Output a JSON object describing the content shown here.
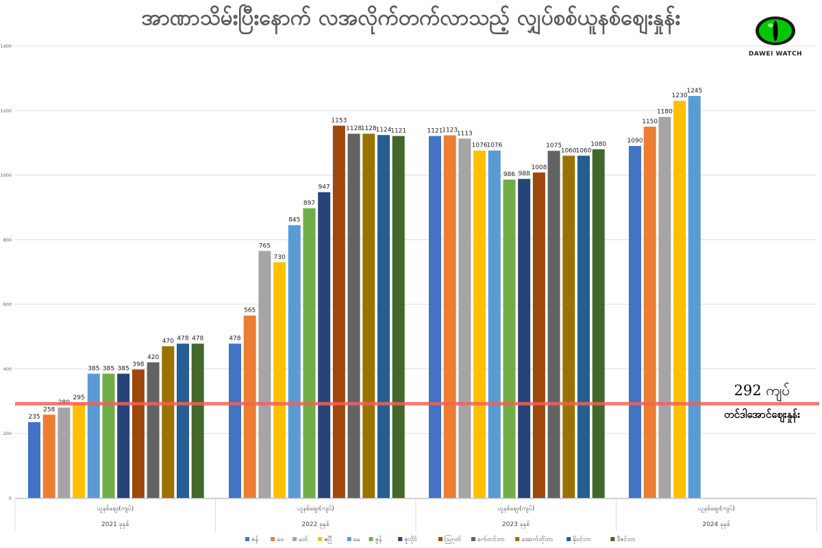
{
  "title": "အာဏာသိမ်းပြီးနောက် လအလိုက်တက်လာသည့် လျှပ်စစ်ယူနစ်စျေးနှုန်း",
  "logo": {
    "text": "DAWEI WATCH",
    "icon": "green-cat-eye-icon"
  },
  "reference_line": {
    "value": 292,
    "label": "292 ကျပ်",
    "sublabel": "တင်ဒါအောင်ဈေးနှုန်း",
    "color": "#f0605a"
  },
  "colors": {
    "ဇန်": "#4472c4",
    "ဖေ": "#ed7d31",
    "မတ်": "#a5a5a5",
    "ဧပြီ": "#ffc000",
    "မေ": "#5b9bd5",
    "ဇွန်": "#70ad47",
    "ဇူလိုင်": "#264478",
    "ဩဂုတ်": "#9e480e",
    "စက်တင်ဘာ": "#636363",
    "အောက်တိုဘာ": "#997300",
    "နိုဝင်ဘာ": "#255e91",
    "ဒီဇင်ဘာ": "#43682b"
  },
  "chart_data": {
    "type": "bar",
    "ylim": [
      0,
      1400
    ],
    "yticks": [
      0,
      200,
      400,
      600,
      800,
      1000,
      1200,
      1400
    ],
    "grid": true,
    "legend": "bottom",
    "months": [
      "ဇန်",
      "ဖေ",
      "မတ်",
      "ဧပြီ",
      "မေ",
      "ဇွန်",
      "ဇူလိုင်",
      "ဩဂုတ်",
      "စက်တင်ဘာ",
      "အောက်တိုဘာ",
      "နိုဝင်ဘာ",
      "ဒီဇင်ဘာ"
    ],
    "groups": [
      {
        "label": "ယူနစ်ဈေး(ကျပ်)",
        "year": "2021 ခုနှစ်",
        "values": [
          235,
          258,
          280,
          295,
          385,
          385,
          385,
          398,
          420,
          470,
          478,
          478
        ]
      },
      {
        "label": "ယူနစ်ဈေး(ကျပ်)",
        "year": "2022 ခုနှစ်",
        "values": [
          478,
          565,
          765,
          730,
          845,
          897,
          947,
          1153,
          1128,
          1128,
          1124,
          1121
        ]
      },
      {
        "label": "ယူနစ်ဈေး(ကျပ်)",
        "year": "2023 ခုနှစ်",
        "values": [
          1121,
          1123,
          1113,
          1076,
          1076,
          986,
          988,
          1008,
          1075,
          1060,
          1060,
          1080
        ]
      },
      {
        "label": "ယူနစ်ဈေး(ကျပ်)",
        "year": "2024 ခုနှစ်",
        "values": [
          1090,
          1150,
          1180,
          1230,
          1245
        ]
      }
    ]
  }
}
